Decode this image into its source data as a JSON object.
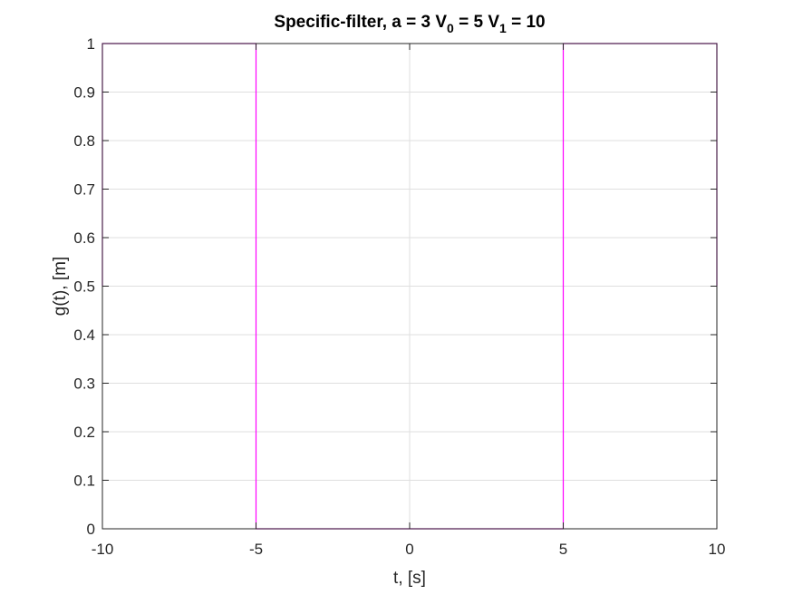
{
  "chart_data": {
    "type": "line",
    "title": {
      "prefix": "Specific-filter, a = 3 V",
      "sub1": "0",
      "mid": " = 5 V",
      "sub2": "1",
      "suffix": " = 10"
    },
    "xlabel": "t, [s]",
    "ylabel": "g(t), [m]",
    "xlim": [
      -10,
      10
    ],
    "ylim": [
      0,
      1
    ],
    "xticks": [
      -10,
      -5,
      0,
      5,
      10
    ],
    "xtick_labels": [
      "-10",
      "-5",
      "0",
      "5",
      "10"
    ],
    "yticks": [
      0,
      0.1,
      0.2,
      0.3,
      0.4,
      0.5,
      0.6,
      0.7,
      0.8,
      0.9,
      1
    ],
    "ytick_labels": [
      "0",
      "0.1",
      "0.2",
      "0.3",
      "0.4",
      "0.5",
      "0.6",
      "0.7",
      "0.8",
      "0.9",
      "1"
    ],
    "grid": true,
    "series": [
      {
        "color": "#ff00ff",
        "x": [
          -10,
          -10,
          -9.95,
          -9.95,
          -5,
          -5,
          5,
          5,
          9.95,
          9.95,
          10,
          10
        ],
        "y": [
          0.5,
          1,
          1,
          1,
          1,
          0,
          0,
          1,
          1,
          1,
          1,
          0.5
        ]
      }
    ]
  }
}
